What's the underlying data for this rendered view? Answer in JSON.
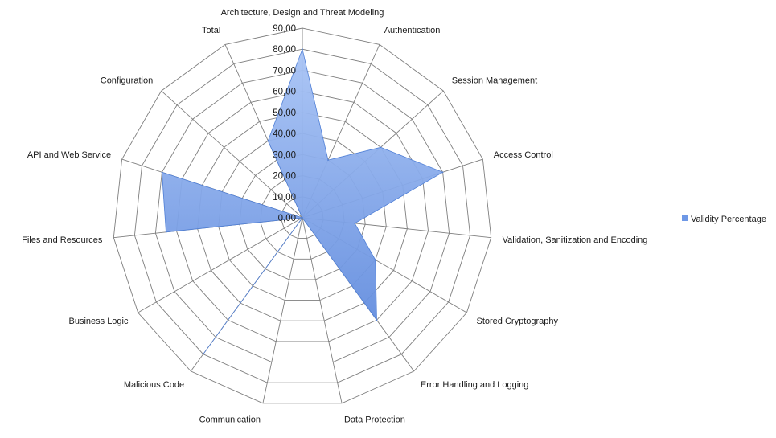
{
  "chart_data": {
    "type": "radar",
    "categories": [
      "Architecture, Design and Threat Modeling",
      "Authentication",
      "Session Management",
      "Access Control",
      "Validation, Sanitization and Encoding",
      "Stored Cryptography",
      "Error Handling and Logging",
      "Data Protection",
      "Communication",
      "Malicious Code",
      "Business Logic",
      "Files and Resources",
      "API and Web Service",
      "Configuration",
      "Total"
    ],
    "series": [
      {
        "name": "Validity Percentage",
        "values": [
          80,
          30,
          50,
          70,
          25,
          40,
          60,
          0,
          0,
          80,
          0,
          65,
          70,
          0,
          40
        ]
      }
    ],
    "ticks": [
      "0,00",
      "10,00",
      "20,00",
      "30,00",
      "40,00",
      "50,00",
      "60,00",
      "70,00",
      "80,00",
      "90,00"
    ],
    "rlim": [
      0,
      90
    ],
    "grid": true,
    "legend_position": "right",
    "colors": {
      "series": "#6e98e6",
      "series_light": "#a9c4f5",
      "grid": "#7f7f7f"
    }
  }
}
